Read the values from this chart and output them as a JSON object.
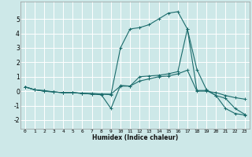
{
  "xlabel": "Humidex (Indice chaleur)",
  "background_color": "#cde8e8",
  "grid_color": "#ffffff",
  "line_color": "#1a6b6b",
  "xlim": [
    -0.5,
    23.5
  ],
  "ylim": [
    -2.6,
    6.2
  ],
  "xticks": [
    0,
    1,
    2,
    3,
    4,
    5,
    6,
    7,
    8,
    9,
    10,
    11,
    12,
    13,
    14,
    15,
    16,
    17,
    18,
    19,
    20,
    21,
    22,
    23
  ],
  "yticks": [
    -2,
    -1,
    0,
    1,
    2,
    3,
    4,
    5
  ],
  "series": [
    {
      "x": [
        0,
        1,
        2,
        3,
        4,
        5,
        6,
        7,
        8,
        9,
        10,
        11,
        12,
        13,
        14,
        15,
        16,
        17,
        18,
        19,
        20,
        21,
        22,
        23
      ],
      "y": [
        0.3,
        0.1,
        0.05,
        -0.05,
        -0.1,
        -0.1,
        -0.15,
        -0.2,
        -0.25,
        -1.2,
        0.4,
        0.35,
        1.0,
        1.05,
        1.1,
        1.2,
        1.35,
        4.3,
        0.05,
        0.05,
        -0.3,
        -1.2,
        -1.55,
        -1.65
      ]
    },
    {
      "x": [
        0,
        1,
        2,
        3,
        4,
        5,
        6,
        7,
        8,
        9,
        10,
        11,
        12,
        13,
        14,
        15,
        16,
        17,
        18,
        19,
        20,
        21,
        22,
        23
      ],
      "y": [
        0.3,
        0.1,
        0.0,
        -0.05,
        -0.1,
        -0.1,
        -0.15,
        -0.2,
        -0.2,
        -0.2,
        0.35,
        0.35,
        0.7,
        0.85,
        1.0,
        1.05,
        1.2,
        1.45,
        0.0,
        0.0,
        -0.1,
        -0.3,
        -0.45,
        -0.55
      ]
    },
    {
      "x": [
        0,
        1,
        2,
        3,
        4,
        5,
        6,
        7,
        8,
        9,
        10,
        11,
        12,
        13,
        14,
        15,
        16,
        17,
        18,
        19,
        20,
        21,
        22,
        23
      ],
      "y": [
        0.3,
        0.1,
        0.0,
        -0.05,
        -0.1,
        -0.1,
        -0.15,
        -0.15,
        -0.2,
        -0.25,
        3.0,
        4.3,
        4.4,
        4.6,
        5.0,
        5.4,
        5.5,
        4.3,
        1.5,
        0.1,
        -0.3,
        -0.5,
        -1.2,
        -1.6
      ]
    }
  ]
}
